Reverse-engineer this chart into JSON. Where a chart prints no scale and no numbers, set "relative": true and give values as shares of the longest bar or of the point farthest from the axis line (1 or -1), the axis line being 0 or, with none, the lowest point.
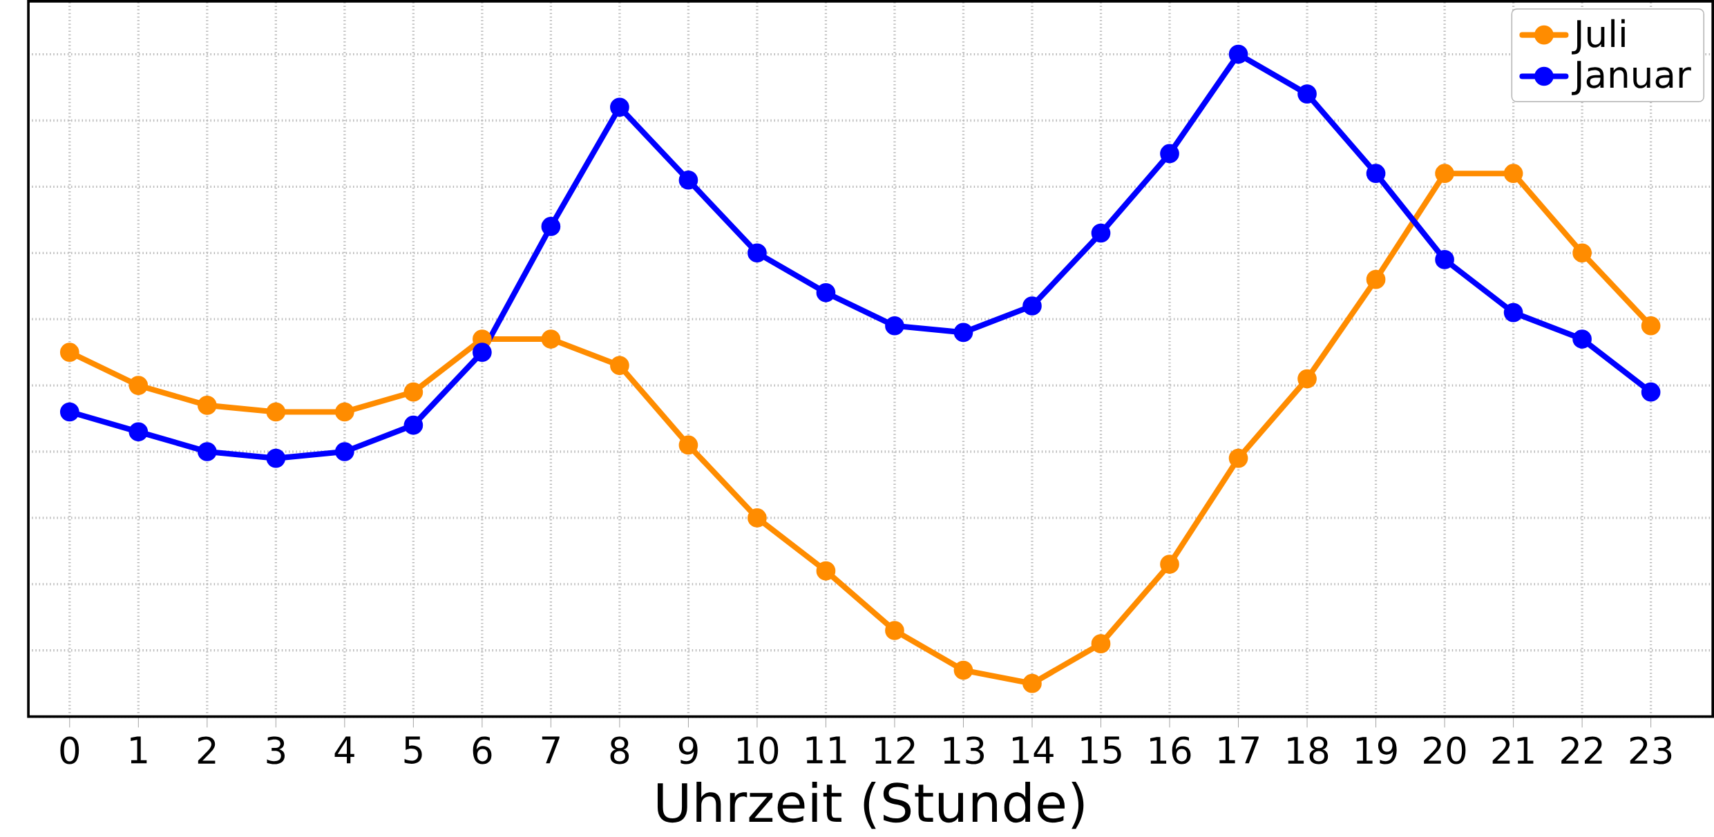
{
  "chart_data": {
    "type": "line",
    "relative": true,
    "xlabel": "Uhrzeit (Stunde)",
    "categories": [
      "0",
      "1",
      "2",
      "3",
      "4",
      "5",
      "6",
      "7",
      "8",
      "9",
      "10",
      "11",
      "12",
      "13",
      "14",
      "15",
      "16",
      "17",
      "18",
      "19",
      "20",
      "21",
      "22",
      "23"
    ],
    "series": [
      {
        "name": "Juli",
        "color": "#ff8c00",
        "values": [
          0.55,
          0.5,
          0.47,
          0.46,
          0.46,
          0.49,
          0.57,
          0.57,
          0.53,
          0.41,
          0.3,
          0.22,
          0.13,
          0.07,
          0.05,
          0.11,
          0.23,
          0.39,
          0.51,
          0.66,
          0.82,
          0.82,
          0.7,
          0.59
        ]
      },
      {
        "name": "Januar",
        "color": "#0000ff",
        "values": [
          0.46,
          0.43,
          0.4,
          0.39,
          0.4,
          0.44,
          0.55,
          0.74,
          0.92,
          0.81,
          0.7,
          0.64,
          0.59,
          0.58,
          0.62,
          0.73,
          0.85,
          1,
          0.94,
          0.82,
          0.69,
          0.61,
          0.57,
          0.49
        ]
      }
    ],
    "grid": true,
    "legend": "top right",
    "marker": "circle",
    "line_style": "solid"
  }
}
